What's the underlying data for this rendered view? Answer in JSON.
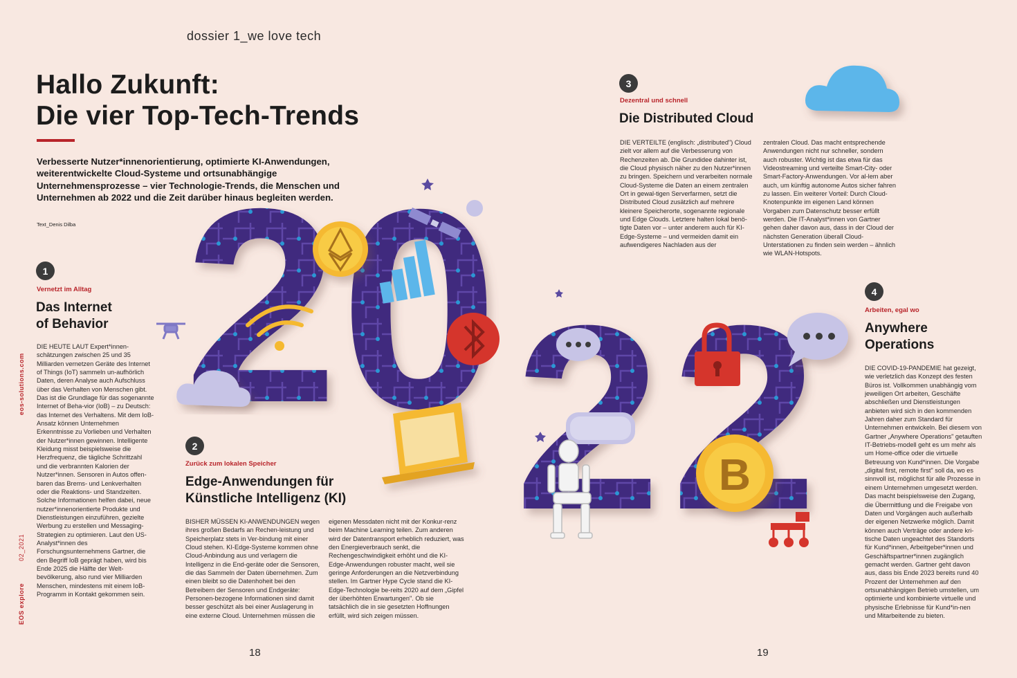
{
  "header": {
    "section": "dossier 1_we love tech"
  },
  "article": {
    "title_line1": "Hallo Zukunft:",
    "title_line2": "Die vier Top-Tech-Trends",
    "lead": "Verbesserte Nutzer*innenorientierung, optimierte KI-Anwendungen, weiterentwickelte Cloud-Systeme und ortsunabhängige Unternehmensprozesse – vier Technologie-Trends, die Menschen und Unternehmen ab 2022 und die Zeit darüber hinaus begleiten werden.",
    "byline": "Text_Denis Dilba"
  },
  "trends": [
    {
      "number": "1",
      "kicker": "Vernetzt im Alltag",
      "headline_line1": "Das Internet",
      "headline_line2": "of Behavior",
      "col1": "DIE HEUTE LAUT Expert*innen-schätzungen zwischen 25 und 35 Milliarden vernetzen Geräte des Internet of Things (IoT) sammeln un-aufhörlich Daten, deren Analyse auch Aufschluss über das Verhalten von Menschen gibt. Das ist die Grundlage für das sogenannte Internet of Beha-vior (IoB) – zu Deutsch: das Internet des Verhaltens. Mit dem IoB-Ansatz können Unternehmen Erkenntnisse zu Vorlieben und Verhalten der Nutzer*innen gewinnen. Intelligente Kleidung misst beispielsweise die Herzfrequenz, die tägliche Schrittzahl und die verbrannten Kalorien der Nutzer*innen. Sensoren in Autos offen-baren das Brems- und Lenkverhalten oder die Reaktions- und Standzeiten. Solche Informationen helfen dabei, neue nutzer*innenorientierte Produkte und Dienstleistungen einzuführen, gezielte Werbung zu erstellen und Messaging-Strategien zu optimieren. Laut den US-Analyst*innen des Forschungsunternehmens Gartner, die den Begriff IoB geprägt haben, wird bis Ende 2025 die Hälfte der Welt-bevölkerung, also rund vier Milliarden Menschen, mindestens mit einem IoB-Programm in Kontakt gekommen sein."
    },
    {
      "number": "2",
      "kicker": "Zurück zum lokalen Speicher",
      "headline_line1": "Edge-Anwendungen für",
      "headline_line2": "Künstliche Intelligenz (KI)",
      "col1": "BISHER MÜSSEN KI-ANWENDUNGEN wegen ihres großen Bedarfs an Rechen-leistung und Speicherplatz stets in Ver-bindung mit einer Cloud stehen. KI-Edge-Systeme kommen ohne Cloud-Anbindung aus und verlagern die Intelligenz in die End-geräte oder die Sensoren, die das Sammeln der Daten übernehmen. Zum einen bleibt so die Datenhoheit bei den Betreibern der Sensoren und Endgeräte: Personen-bezogene Informationen sind damit besser geschützt als bei einer Auslagerung in eine externe Cloud. Unternehmen müssen die",
      "col2": "eigenen Messdaten nicht mit der Konkur-renz beim Machine Learning teilen. Zum anderen wird der Datentransport erheblich reduziert, was den Energieverbrauch senkt, die Rechengeschwindigkeit erhöht und die KI-Edge-Anwendungen robuster macht, weil sie geringe Anforderungen an die Netzverbindung stellen. Im Gartner Hype Cycle stand die KI-Edge-Technologie be-reits 2020 auf dem „Gipfel der überhöhten Erwartungen\". Ob sie tatsächlich die in sie gesetzten Hoffnungen erfüllt, wird sich zeigen müssen."
    },
    {
      "number": "3",
      "kicker": "Dezentral und schnell",
      "headline_line1": "Die Distributed Cloud",
      "col1": "DIE VERTEILTE (englisch: „distributed\") Cloud zielt vor allem auf die Verbesserung von Rechenzeiten ab. Die Grundidee dahinter ist, die Cloud physisch näher zu den Nutzer*innen zu bringen. Speichern und verarbeiten normale Cloud-Systeme die Daten an einem zentralen Ort in gewal-tigen Serverfarmen, setzt die Distributed Cloud zusätzlich auf mehrere kleinere Speicherorte, sogenannte regionale und Edge Clouds. Letztere halten lokal benö-tigte Daten vor – unter anderem auch für KI-Edge-Systeme – und vermeiden damit ein aufwendigeres Nachladen aus der",
      "col2": "zentralen Cloud. Das macht entsprechende Anwendungen nicht nur schneller, sondern auch robuster. Wichtig ist das etwa für das Videostreaming und verteilte Smart-City- oder Smart-Factory-Anwendungen. Vor al-lem aber auch, um künftig autonome Autos sicher fahren zu lassen. Ein weiterer Vorteil: Durch Cloud-Knotenpunkte im eigenen Land können Vorgaben zum Datenschutz besser erfüllt werden. Die IT-Analyst*innen von Gartner gehen daher davon aus, dass in der Cloud der nächsten Generation überall Cloud-Unterstationen zu finden sein werden – ähnlich wie WLAN-Hotspots."
    },
    {
      "number": "4",
      "kicker": "Arbeiten, egal wo",
      "headline_line1": "Anywhere",
      "headline_line2": "Operations",
      "col1": "DIE COVID-19-PANDEMIE hat gezeigt, wie verletzlich das Konzept des festen Büros ist. Vollkommen unabhängig vom jeweiligen Ort arbeiten, Geschäfte abschließen und Dienstleistungen anbieten wird sich in den kommenden Jahren daher zum Standard für Unternehmen entwickeln. Bei diesem von Gartner „Anywhere Operations\" getauften IT-Betriebs-modell geht es um mehr als um Home-office oder die virtuelle Betreuung von Kund*innen. Die Vorgabe „digital first, remote first\" soll da, wo es sinnvoll ist, möglichst für alle Prozesse in einem Unternehmen umgesetzt werden. Das macht beispielsweise den Zugang, die Übermittlung und die Freigabe von Daten und Vorgängen auch außerhalb der eigenen Netzwerke möglich. Damit können auch Verträge oder andere kri-tische Daten ungeachtet des Standorts für Kund*innen, Arbeitgeber*innen und Geschäftspartner*innen zugänglich gemacht werden. Gartner geht davon aus, dass bis Ende 2023 bereits rund 40 Prozent der Unternehmen auf den ortsunabhängigen Betrieb umstellen, um optimierte und kombinierte virtuelle und physische Erlebnisse für Kund*in-nen und Mitarbeitende zu bieten."
    }
  ],
  "footer": {
    "magazine": "EOS explore",
    "issue": "02_2021",
    "website": "eos-solutions.com",
    "page_left": "18",
    "page_right": "19"
  },
  "illustration": {
    "year_digits": [
      "2",
      "0",
      "2",
      "2"
    ],
    "digit_color": "#3f2b7e",
    "icons": [
      "ethereum-coin-icon",
      "wifi-icon",
      "satellite-icon",
      "bar-chart-icon",
      "bluetooth-icon",
      "cloud-icon",
      "drone-icon",
      "laptop-icon",
      "chat-bubble-icon",
      "vr-headset-icon",
      "padlock-icon",
      "bitcoin-icon",
      "robot-icon",
      "rover-icon",
      "star-icon"
    ]
  },
  "colors": {
    "accent": "#b8242a",
    "background": "#f8e8e1",
    "badge": "#3b3b3b"
  }
}
